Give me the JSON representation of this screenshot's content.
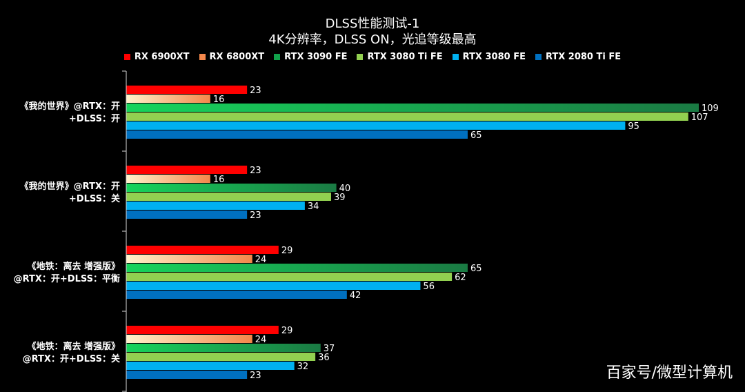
{
  "chart_data": {
    "type": "bar",
    "orientation": "horizontal",
    "title": "DLSS性能测试-1",
    "subtitle": "4K分辨率，DLSS ON，光追等级最高",
    "categories": [
      [
        "《我的世界》@RTX：开",
        "+DLSS：开"
      ],
      [
        "《我的世界》@RTX：开",
        "+DLSS：关"
      ],
      [
        "《地铁：离去 增强版》",
        "@RTX：开+DLSS：平衡"
      ],
      [
        "《地铁：离去 增强版》",
        "@RTX：开+DLSS：关"
      ]
    ],
    "series": [
      {
        "name": "RX 6900XT",
        "color": "#ff0000",
        "gradient": [
          "#ff0000",
          "#ff0000"
        ],
        "values": [
          23,
          23,
          29,
          29
        ]
      },
      {
        "name": "RX 6800XT",
        "color": "#f4874b",
        "gradient": [
          "#fff2cc",
          "#f4874b"
        ],
        "values": [
          16,
          16,
          24,
          24
        ]
      },
      {
        "name": "RTX 3090 FE",
        "color": "#11a14b",
        "gradient": [
          "#17d45c",
          "#1a7a43"
        ],
        "values": [
          109,
          40,
          65,
          37
        ]
      },
      {
        "name": "RTX 3080 Ti FE",
        "color": "#92d050",
        "gradient": [
          "#92d050",
          "#92d050"
        ],
        "values": [
          107,
          39,
          62,
          36
        ]
      },
      {
        "name": "RTX 3080 FE",
        "color": "#00b0f0",
        "gradient": [
          "#00b0f0",
          "#00b0f0"
        ],
        "values": [
          95,
          34,
          56,
          32
        ]
      },
      {
        "name": "RTX 2080 Ti FE",
        "color": "#0070c0",
        "gradient": [
          "#0070c0",
          "#0070c0"
        ],
        "values": [
          65,
          23,
          42,
          23
        ]
      }
    ],
    "xlim": [
      0,
      125
    ],
    "grid": false,
    "legend_position": "top-center",
    "data_labels": true
  },
  "watermark": "百家号/微型计算机",
  "colors": {
    "background": "#000000",
    "text": "#ffffff",
    "axis": "#d9d9d9"
  }
}
